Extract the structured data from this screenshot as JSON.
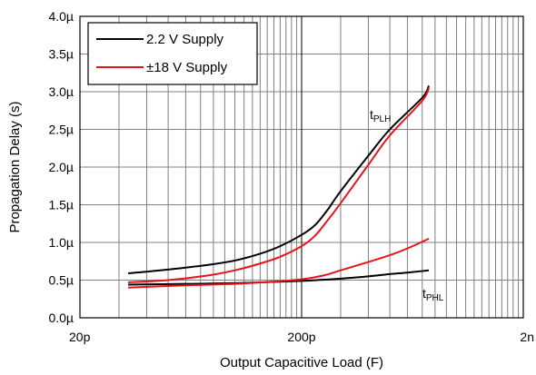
{
  "chart_data": {
    "type": "line",
    "title": "",
    "xlabel": "Output Capacitive Load (F)",
    "ylabel": "Propagation Delay (s)",
    "x_scale": "log",
    "xlim": [
      2e-11,
      2e-09
    ],
    "ylim": [
      0,
      4e-06
    ],
    "x_ticks": [
      {
        "value": 2e-11,
        "label": "20p"
      },
      {
        "value": 2e-10,
        "label": "200p"
      },
      {
        "value": 2e-09,
        "label": "2n"
      }
    ],
    "y_ticks": [
      {
        "value": 0.0,
        "label": "0.0µ"
      },
      {
        "value": 5e-07,
        "label": "0.5µ"
      },
      {
        "value": 1e-06,
        "label": "1.0µ"
      },
      {
        "value": 1.5e-06,
        "label": "1.5µ"
      },
      {
        "value": 2e-06,
        "label": "2.0µ"
      },
      {
        "value": 2.5e-06,
        "label": "2.5µ"
      },
      {
        "value": 3e-06,
        "label": "3.0µ"
      },
      {
        "value": 3.5e-06,
        "label": "3.5µ"
      },
      {
        "value": 4e-06,
        "label": "4.0µ"
      }
    ],
    "grid": true,
    "legend_position": "top-left",
    "series": [
      {
        "name": "2.2 V Supply",
        "color": "#000000",
        "curves": [
          {
            "label_main": "t",
            "label_sub": "PLH",
            "points": [
              [
                3.3e-11,
                5.9e-07
              ],
              [
                5e-11,
                6.4e-07
              ],
              [
                7.5e-11,
                7e-07
              ],
              [
                1e-10,
                7.6e-07
              ],
              [
                1.3e-10,
                8.5e-07
              ],
              [
                1.6e-10,
                9.5e-07
              ],
              [
                2e-10,
                1.1e-06
              ],
              [
                2.3e-10,
                1.23e-06
              ],
              [
                2.6e-10,
                1.42e-06
              ],
              [
                3e-10,
                1.68e-06
              ],
              [
                4e-10,
                2.15e-06
              ],
              [
                5e-10,
                2.5e-06
              ],
              [
                7e-10,
                2.92e-06
              ],
              [
                7.5e-10,
                3.08e-06
              ]
            ]
          },
          {
            "label_main": "t",
            "label_sub": "PHL",
            "points": [
              [
                3.3e-11,
                4.4e-07
              ],
              [
                6e-11,
                4.5e-07
              ],
              [
                1e-10,
                4.6e-07
              ],
              [
                2e-10,
                4.9e-07
              ],
              [
                3e-10,
                5.2e-07
              ],
              [
                4e-10,
                5.5e-07
              ],
              [
                5e-10,
                5.8e-07
              ],
              [
                6e-10,
                6e-07
              ],
              [
                7.5e-10,
                6.3e-07
              ]
            ]
          }
        ]
      },
      {
        "name": "±18 V Supply",
        "color": "#e8141b",
        "curves": [
          {
            "points": [
              [
                3.3e-11,
                4.7e-07
              ],
              [
                5e-11,
                5e-07
              ],
              [
                7.5e-11,
                5.6e-07
              ],
              [
                1e-10,
                6.3e-07
              ],
              [
                1.3e-10,
                7.2e-07
              ],
              [
                1.6e-10,
                8.1e-07
              ],
              [
                2e-10,
                9.5e-07
              ],
              [
                2.3e-10,
                1.09e-06
              ],
              [
                2.6e-10,
                1.28e-06
              ],
              [
                3e-10,
                1.52e-06
              ],
              [
                4e-10,
                2.03e-06
              ],
              [
                5e-10,
                2.42e-06
              ],
              [
                7e-10,
                2.88e-06
              ],
              [
                7.5e-10,
                3.05e-06
              ]
            ]
          },
          {
            "points": [
              [
                3.3e-11,
                4e-07
              ],
              [
                6e-11,
                4.3e-07
              ],
              [
                1e-10,
                4.5e-07
              ],
              [
                1.5e-10,
                4.8e-07
              ],
              [
                2e-10,
                5.1e-07
              ],
              [
                2.5e-10,
                5.6e-07
              ],
              [
                3e-10,
                6.3e-07
              ],
              [
                4e-10,
                7.4e-07
              ],
              [
                5e-10,
                8.3e-07
              ],
              [
                6e-10,
                9.2e-07
              ],
              [
                7.5e-10,
                1.05e-06
              ]
            ]
          }
        ]
      }
    ]
  }
}
